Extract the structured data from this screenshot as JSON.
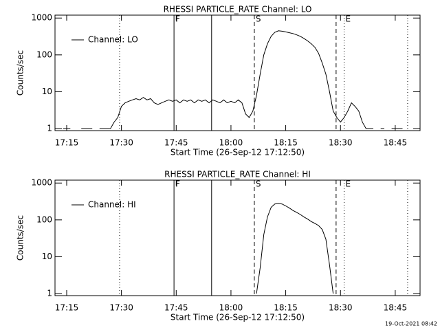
{
  "chart_data": [
    {
      "type": "line",
      "title": "RHESSI PARTICLE_RATE Channel: LO",
      "xlabel": "Start Time (26-Sep-12 17:12:50)",
      "ylabel": "Counts/sec",
      "log_y": true,
      "legend": "upper left",
      "xlim": [
        1031.8,
        1131.8
      ],
      "ylim": [
        0.88,
        1200
      ],
      "xticks": [
        {
          "value": 1035,
          "label": "17:15"
        },
        {
          "value": 1050,
          "label": "17:30"
        },
        {
          "value": 1065,
          "label": "17:45"
        },
        {
          "value": 1080,
          "label": "18:00"
        },
        {
          "value": 1095,
          "label": "18:15"
        },
        {
          "value": 1110,
          "label": "18:30"
        },
        {
          "value": 1125,
          "label": "18:45"
        }
      ],
      "yticks": [
        1,
        10,
        100,
        1000
      ],
      "events": [
        {
          "x": 1049.5,
          "style": "dotted"
        },
        {
          "x": 1064.4,
          "style": "solid",
          "label": "F"
        },
        {
          "x": 1074.7,
          "style": "solid"
        },
        {
          "x": 1086.4,
          "style": "dashed",
          "label": "S"
        },
        {
          "x": 1108.8,
          "style": "dashed"
        },
        {
          "x": 1111,
          "style": "dotted",
          "label": "E"
        },
        {
          "x": 1128.4,
          "style": "dotted"
        }
      ],
      "x": [
        1032,
        1033,
        1034,
        1035,
        1036,
        1037,
        1038,
        1039,
        1040,
        1041,
        1042,
        1043,
        1044,
        1045,
        1046,
        1047,
        1048,
        1049,
        1050,
        1051,
        1052,
        1053,
        1054,
        1055,
        1056,
        1057,
        1058,
        1059,
        1060,
        1061,
        1062,
        1063,
        1064,
        1065,
        1066,
        1067,
        1068,
        1069,
        1070,
        1071,
        1072,
        1073,
        1074,
        1075,
        1076,
        1077,
        1078,
        1079,
        1080,
        1081,
        1082,
        1083,
        1084,
        1085,
        1086,
        1087,
        1088,
        1089,
        1090,
        1091,
        1092,
        1093,
        1094,
        1095,
        1096,
        1097,
        1098,
        1099,
        1100,
        1101,
        1102,
        1103,
        1104,
        1105,
        1106,
        1107,
        1108,
        1109,
        1110,
        1111,
        1112,
        1113,
        1114,
        1115,
        1116,
        1117,
        1118,
        1119,
        1120,
        1121,
        1122,
        1123,
        1124,
        1125,
        1126,
        1127,
        1128,
        1129,
        1130
      ],
      "series": [
        {
          "name": "Channel: LO",
          "color": "#000000",
          "values": [
            1,
            null,
            1,
            1,
            1,
            null,
            null,
            1,
            1,
            1,
            1,
            null,
            1,
            1,
            1,
            1,
            1.5,
            2,
            4,
            5,
            5.5,
            6,
            6.5,
            6,
            7,
            6,
            6.5,
            5,
            4.5,
            5,
            5.5,
            6,
            5.5,
            6,
            5,
            6,
            5.5,
            6,
            5,
            6,
            5.5,
            6,
            5,
            6,
            5.5,
            5,
            6,
            5,
            5.5,
            5,
            6,
            5,
            2.5,
            2,
            3,
            8,
            30,
            100,
            200,
            320,
            410,
            450,
            440,
            420,
            400,
            380,
            350,
            320,
            280,
            240,
            200,
            160,
            110,
            60,
            30,
            10,
            3,
            2,
            1.5,
            2,
            3,
            5,
            4,
            3,
            1.5,
            1,
            1,
            1,
            null,
            1,
            1,
            null,
            1,
            1,
            1,
            1,
            null,
            null,
            null
          ]
        }
      ]
    },
    {
      "type": "line",
      "title": "RHESSI PARTICLE_RATE Channel: HI",
      "xlabel": "Start Time (26-Sep-12 17:12:50)",
      "ylabel": "Counts/sec",
      "log_y": true,
      "legend": "upper left",
      "xlim": [
        1031.8,
        1131.8
      ],
      "ylim": [
        0.88,
        1200
      ],
      "xticks": [
        {
          "value": 1035,
          "label": "17:15"
        },
        {
          "value": 1050,
          "label": "17:30"
        },
        {
          "value": 1065,
          "label": "17:45"
        },
        {
          "value": 1080,
          "label": "18:00"
        },
        {
          "value": 1095,
          "label": "18:15"
        },
        {
          "value": 1110,
          "label": "18:30"
        },
        {
          "value": 1125,
          "label": "18:45"
        }
      ],
      "yticks": [
        1,
        10,
        100,
        1000
      ],
      "events": [
        {
          "x": 1049.5,
          "style": "dotted"
        },
        {
          "x": 1064.4,
          "style": "solid",
          "label": "F"
        },
        {
          "x": 1074.7,
          "style": "solid"
        },
        {
          "x": 1086.4,
          "style": "dashed",
          "label": "S"
        },
        {
          "x": 1108.8,
          "style": "dashed"
        },
        {
          "x": 1111,
          "style": "dotted",
          "label": "E"
        },
        {
          "x": 1128.4,
          "style": "dotted"
        }
      ],
      "x": [
        1087,
        1088,
        1089,
        1090,
        1091,
        1092,
        1093,
        1094,
        1095,
        1096,
        1097,
        1098,
        1099,
        1100,
        1101,
        1102,
        1103,
        1104,
        1105,
        1106,
        1107,
        1108
      ],
      "series": [
        {
          "name": "Channel: HI",
          "color": "#000000",
          "values": [
            1,
            5,
            40,
            120,
            220,
            270,
            280,
            270,
            240,
            210,
            180,
            160,
            140,
            120,
            105,
            90,
            80,
            70,
            55,
            30,
            6,
            1
          ]
        }
      ]
    }
  ],
  "footer": "19-Oct-2021 08:42"
}
